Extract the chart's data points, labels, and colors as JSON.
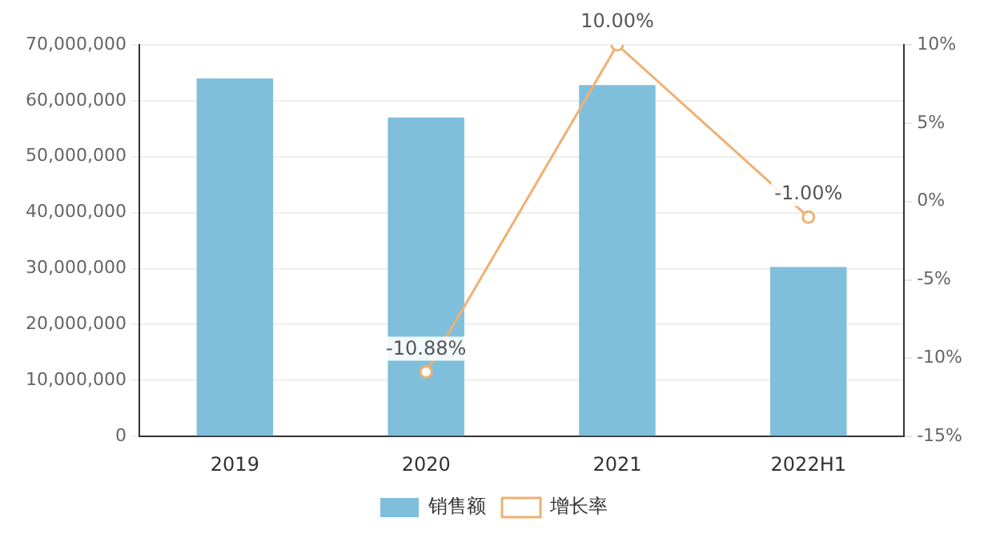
{
  "chart_data": {
    "type": "bar",
    "categories": [
      "2019",
      "2020",
      "2021",
      "2022H1"
    ],
    "series": [
      {
        "name": "销售额",
        "color": "#7fbfdc",
        "values": [
          64000000,
          57000000,
          62800000,
          30300000
        ]
      },
      {
        "name": "增长率",
        "type": "line",
        "axis": "y2",
        "color": "#f0b070",
        "values": [
          null,
          -10.88,
          10.0,
          -1.0
        ],
        "value_labels": [
          null,
          "-10.88%",
          "10.00%",
          "-1.00%"
        ]
      }
    ],
    "ylim": [
      0,
      70000000
    ],
    "yticks": [
      0,
      {
        "value": 10000000,
        "label": "10,000,000"
      },
      {
        "value": 20000000,
        "label": "20,000,000"
      },
      {
        "value": 30000000,
        "label": "30,000,000"
      },
      {
        "value": 40000000,
        "label": "40,000,000"
      },
      {
        "value": 50000000,
        "label": "50,000,000"
      },
      {
        "value": 60000000,
        "label": "60,000,000"
      },
      {
        "value": 70000000,
        "label": "70,000,000"
      }
    ],
    "y2lim": [
      -15,
      10
    ],
    "y2ticks": [
      {
        "value": -15,
        "label": "-15%"
      },
      {
        "value": -10,
        "label": "-10%"
      },
      {
        "value": -5,
        "label": "-5%"
      },
      {
        "value": 0,
        "label": "0%"
      },
      {
        "value": 5,
        "label": "5%"
      },
      {
        "value": 10,
        "label": "10%"
      }
    ],
    "grid": "y",
    "legend": "bottom",
    "marker": "circle",
    "line_style": "solid"
  }
}
